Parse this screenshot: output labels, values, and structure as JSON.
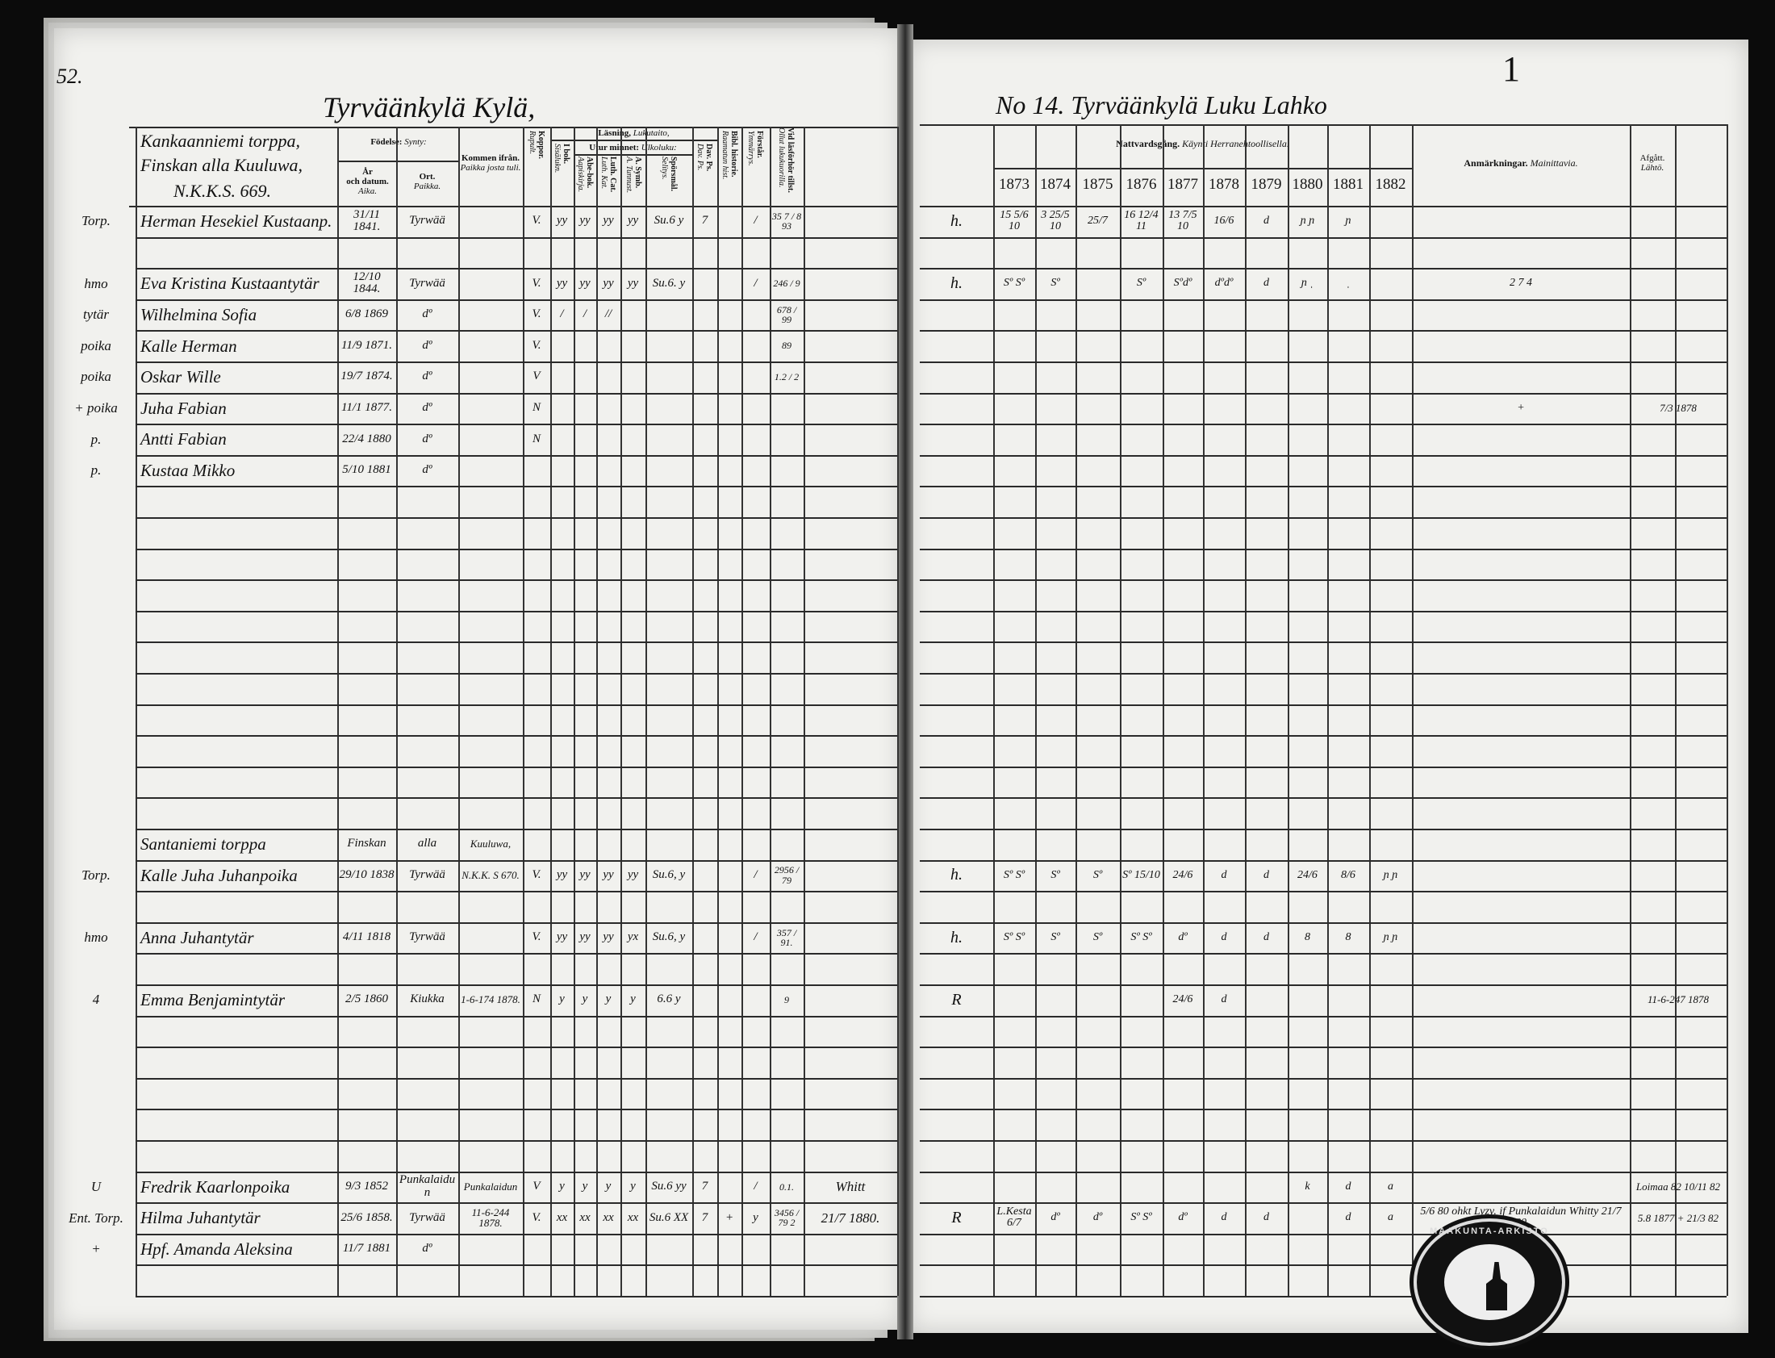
{
  "left_page": {
    "page_number": "52.",
    "village_title": "Tyrväänkylä Kylä,",
    "farm_header": [
      "Kankaanniemi torppa,",
      "Finskan alla Kuuluwa,",
      "N.K.K.S. 669."
    ],
    "headers": {
      "birth": "Födelse:",
      "birth_fi": "Synty:",
      "year": "År",
      "year2": "och datum.",
      "year_fi": "Aika.",
      "place": "Ort.",
      "place_fi": "Paikka.",
      "from": "Kommen ifrån.",
      "from_fi": "Paikka josta tuli.",
      "kopp": "Koppor.",
      "kopp_fi": "Rupult.",
      "reading": "Läsning,",
      "reading_fi": "Lukutaito,",
      "ibok": "I bok.",
      "ibok_fi": "Sisälukn.",
      "memory": "Utur minnet:",
      "memory_fi": "Ulkoluku:",
      "abe": "Abe-bok.",
      "abe_fi": "Aapiskirja.",
      "luth": "Luth. Cat.",
      "luth_fi": "Luth. Kat.",
      "symb": "A. Symb.",
      "symb_fi": "A. Tunnust.",
      "sporsmal": "Spörsmål.",
      "sporsmal_fi": "Selitys.",
      "dav": "Dav. Ps.",
      "dav_fi": "Dav. Ps.",
      "bibl": "Bibl. historie.",
      "bibl_fi": "Raamatun hist.",
      "forstar": "Förstår.",
      "forstar_fi": "Ymmärrys.",
      "vid": "Vid läsförhör tillst.",
      "vid_fi": "Ollut lukukuorilla."
    },
    "entries": [
      {
        "row": 0,
        "role": "Torp.",
        "name": "Herman Hesekiel Kustaanp.",
        "date": "31/11 1841.",
        "place": "Tyrwää",
        "from": "",
        "kopp": "V.",
        "ibok": "yy",
        "abe": "yy",
        "luth": "yy",
        "symb": "yy",
        "sporsmal": "Su.6 y",
        "dav": "7",
        "bibl": "",
        "forstar": "/",
        "vid": "35 7 / 8 93",
        "note": ""
      },
      {
        "row": 2,
        "role": "hmo",
        "name": "Eva Kristina Kustaantytär",
        "date": "12/10 1844.",
        "place": "Tyrwää",
        "from": "",
        "kopp": "V.",
        "ibok": "yy",
        "abe": "yy",
        "luth": "yy",
        "symb": "yy",
        "sporsmal": "Su.6. y",
        "dav": "",
        "bibl": "",
        "forstar": "/",
        "vid": "246 / 9",
        "note": ""
      },
      {
        "row": 3,
        "role": "tytär",
        "name": "Wilhelmina Sofia",
        "date": "6/8 1869",
        "place": "dº",
        "from": "",
        "kopp": "V.",
        "ibok": "/",
        "abe": "/",
        "luth": "//",
        "symb": "",
        "sporsmal": "",
        "dav": "",
        "bibl": "",
        "forstar": "",
        "vid": "678 / 99",
        "note": ""
      },
      {
        "row": 4,
        "role": "poika",
        "name": "Kalle Herman",
        "date": "11/9 1871.",
        "place": "dº",
        "from": "",
        "kopp": "V.",
        "ibok": "",
        "abe": "",
        "luth": "",
        "symb": "",
        "sporsmal": "",
        "dav": "",
        "bibl": "",
        "forstar": "",
        "vid": "89",
        "note": ""
      },
      {
        "row": 5,
        "role": "poika",
        "name": "Oskar Wille",
        "date": "19/7 1874.",
        "place": "dº",
        "from": "",
        "kopp": "V",
        "ibok": "",
        "abe": "",
        "luth": "",
        "symb": "",
        "sporsmal": "",
        "dav": "",
        "bibl": "",
        "forstar": "",
        "vid": "1.2 / 2",
        "note": ""
      },
      {
        "row": 6,
        "role": "+ poika",
        "name": "Juha Fabian",
        "date": "11/1 1877.",
        "place": "dº",
        "from": "",
        "kopp": "N",
        "ibok": "",
        "abe": "",
        "luth": "",
        "symb": "",
        "sporsmal": "",
        "dav": "",
        "bibl": "",
        "forstar": "",
        "vid": "",
        "note": ""
      },
      {
        "row": 7,
        "role": "p.",
        "name": "Antti Fabian",
        "date": "22/4 1880",
        "place": "dº",
        "from": "",
        "kopp": "N",
        "ibok": "",
        "abe": "",
        "luth": "",
        "symb": "",
        "sporsmal": "",
        "dav": "",
        "bibl": "",
        "forstar": "",
        "vid": "",
        "note": ""
      },
      {
        "row": 8,
        "role": "p.",
        "name": "Kustaa Mikko",
        "date": "5/10 1881",
        "place": "dº",
        "from": "",
        "kopp": "",
        "ibok": "",
        "abe": "",
        "luth": "",
        "symb": "",
        "sporsmal": "",
        "dav": "",
        "bibl": "",
        "forstar": "",
        "vid": "",
        "note": ""
      },
      {
        "row": 20,
        "role": "",
        "name": "Santaniemi torppa",
        "date": "Finskan",
        "place": "alla",
        "from": "Kuuluwa,",
        "kopp": "",
        "ibok": "",
        "abe": "",
        "luth": "",
        "symb": "",
        "sporsmal": "",
        "dav": "",
        "bibl": "",
        "forstar": "",
        "vid": "",
        "note": ""
      },
      {
        "row": 21,
        "role": "Torp.",
        "name": "Kalle Juha Juhanpoika",
        "date": "29/10 1838",
        "place": "Tyrwää",
        "from": "N.K.K. S 670.",
        "kopp": "V.",
        "ibok": "yy",
        "abe": "yy",
        "luth": "yy",
        "symb": "yy",
        "sporsmal": "Su.6, y",
        "dav": "",
        "bibl": "",
        "forstar": "/",
        "vid": "2956 / 79",
        "note": ""
      },
      {
        "row": 23,
        "role": "hmo",
        "name": "Anna Juhantytär",
        "date": "4/11 1818",
        "place": "Tyrwää",
        "from": "",
        "kopp": "V.",
        "ibok": "yy",
        "abe": "yy",
        "luth": "yy",
        "symb": "yx",
        "sporsmal": "Su.6, y",
        "dav": "",
        "bibl": "",
        "forstar": "/",
        "vid": "357 / 91.",
        "note": ""
      },
      {
        "row": 25,
        "role": "4",
        "name": "Emma Benjamintytär",
        "date": "2/5 1860",
        "place": "Kiukka",
        "from": "1-6-174 1878.",
        "kopp": "N",
        "ibok": "y",
        "abe": "y",
        "luth": "y",
        "symb": "y",
        "sporsmal": "6.6 y",
        "dav": "",
        "bibl": "",
        "forstar": "",
        "vid": "9",
        "note": ""
      },
      {
        "row": 31,
        "role": "U",
        "name": "Fredrik Kaarlonpoika",
        "date": "9/3 1852",
        "place": "Punkalaidun",
        "from": "Punkalaidun",
        "kopp": "V",
        "ibok": "y",
        "abe": "y",
        "luth": "y",
        "symb": "y",
        "sporsmal": "Su.6 yy",
        "dav": "7",
        "bibl": "",
        "forstar": "/",
        "vid": "0.1.",
        "note": "Whitt"
      },
      {
        "row": 32,
        "role": "Ent. Torp.",
        "name": "Hilma Juhantytär",
        "date": "25/6 1858.",
        "place": "Tyrwää",
        "from": "11-6-244 1878.",
        "kopp": "V.",
        "ibok": "xx",
        "abe": "xx",
        "luth": "xx",
        "symb": "xx",
        "sporsmal": "Su.6 XX",
        "dav": "7",
        "bibl": "+",
        "forstar": "y",
        "vid": "3456 / 79 2",
        "note": "21/7 1880."
      },
      {
        "row": 33,
        "role": "+",
        "name": "Hpf. Amanda Aleksina",
        "date": "11/7 1881",
        "place": "dº",
        "from": "",
        "kopp": "",
        "ibok": "",
        "abe": "",
        "luth": "",
        "symb": "",
        "sporsmal": "",
        "dav": "",
        "bibl": "",
        "forstar": "",
        "vid": "",
        "note": ""
      }
    ]
  },
  "right_page": {
    "household_title": "No 14. Tyrväänkylä Luku Lahko",
    "corner_mark": "1",
    "headers": {
      "communion": "Nattvardsgång.",
      "communion_fi": "Käynti Herranehtoollisella.",
      "years": [
        "1873",
        "1874",
        "1875",
        "1876",
        "1877",
        "1878",
        "1879",
        "1880",
        "1881",
        "1882"
      ],
      "remarks": "Anmärkningar.",
      "remarks_fi": "Mainittavia.",
      "departed": "Afgått.",
      "departed_fi": "Lähtö."
    },
    "entries": [
      {
        "row": 0,
        "mark": "h.",
        "years": [
          "15 5/6 10",
          "3 25/5 10",
          "25/7",
          "16 12/4 11",
          "13 7/5 10",
          "16/6",
          "d",
          "ɲ ɲ",
          "ɲ",
          ""
        ],
        "remarks": "",
        "departed": ""
      },
      {
        "row": 2,
        "mark": "h.",
        "years": [
          "Sº Sº",
          "Sº",
          "",
          "Sº",
          "Sºdº",
          "dºdº",
          "d",
          "ɲ ˌ",
          "ˌ",
          ""
        ],
        "remarks": "2 7 4",
        "departed": ""
      },
      {
        "row": 6,
        "mark": "",
        "years": [
          "",
          "",
          "",
          "",
          "",
          "",
          "",
          "",
          "",
          ""
        ],
        "remarks": "+",
        "departed": "7/3 1878"
      },
      {
        "row": 21,
        "mark": "h.",
        "years": [
          "Sº Sº",
          "Sº",
          "Sº",
          "Sº 15/10",
          "24/6",
          "d",
          "d",
          "24/6",
          "8/6",
          "ɲ ɲ"
        ],
        "remarks": "",
        "departed": ""
      },
      {
        "row": 23,
        "mark": "h.",
        "years": [
          "Sº Sº",
          "Sº",
          "Sº",
          "Sº Sº",
          "dº",
          "d",
          "d",
          "8",
          "8",
          "ɲ ɲ"
        ],
        "remarks": "",
        "departed": ""
      },
      {
        "row": 25,
        "mark": "R",
        "years": [
          "",
          "",
          "",
          "",
          "24/6",
          "d",
          "",
          "",
          "",
          ""
        ],
        "remarks": "",
        "departed": "11-6-247 1878"
      },
      {
        "row": 31,
        "mark": "",
        "years": [
          "",
          "",
          "",
          "",
          "",
          "",
          "",
          "k",
          "d",
          "a"
        ],
        "remarks": "",
        "departed": "Loimaa 82 10/11 82"
      },
      {
        "row": 32,
        "mark": "R",
        "years": [
          "L.Kesta 6/7",
          "dº",
          "dº",
          "Sº Sº",
          "dº",
          "d",
          "d",
          "",
          "d",
          "a"
        ],
        "remarks": "5/6 80 ohkt Lyzy. if Punkalaidun  Whitty 21/7 80",
        "departed": "5.8 1877 + 21/3 82"
      }
    ]
  },
  "stamp": {
    "text": "MAAKUNTA-ARKISTO"
  },
  "colors": {
    "paper": "#f1f1ee",
    "ink": "#151515",
    "background": "#0b0b0b"
  }
}
